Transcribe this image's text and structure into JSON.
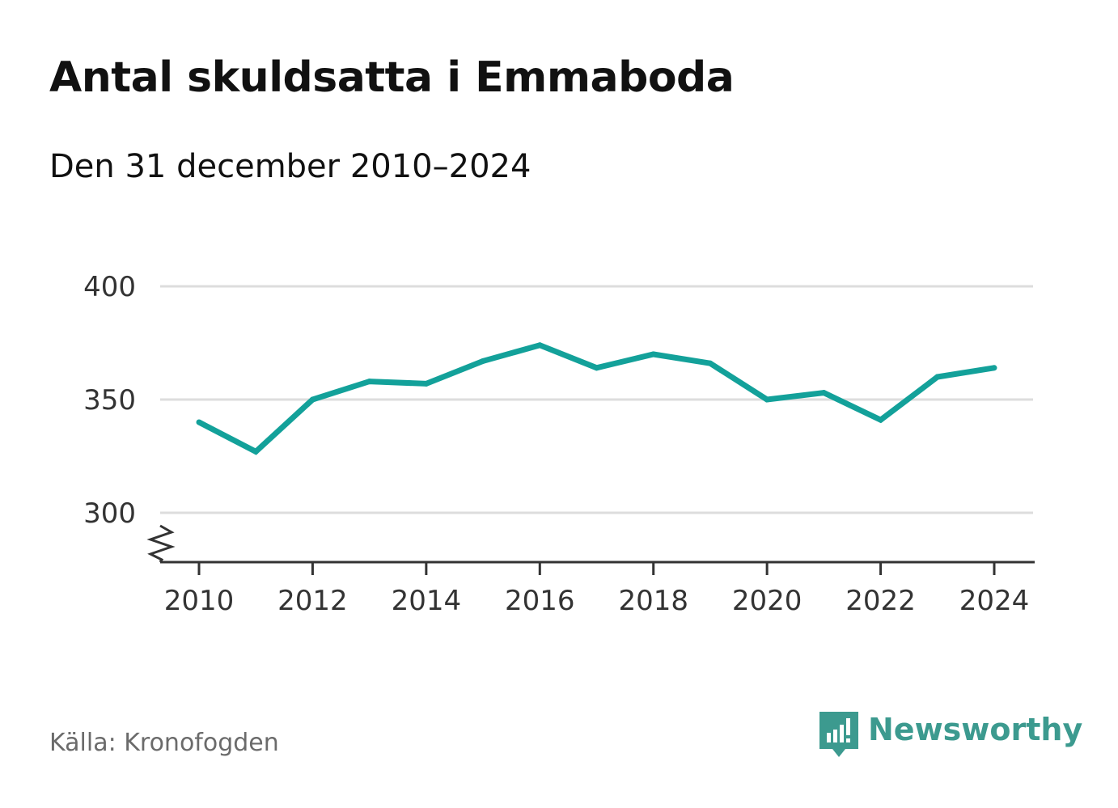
{
  "title": "Antal skuldsatta i Emmaboda",
  "subtitle": "Den 31 december 2010–2024",
  "source": "Källa: Kronofogden",
  "brand": {
    "name": "Newsworthy",
    "icon": "newsworthy-logo-icon",
    "color": "#3c9a8f"
  },
  "colors": {
    "line": "#13a19a",
    "grid": "#dddddd",
    "axis": "#333333"
  },
  "chart_data": {
    "type": "line",
    "x": [
      2010,
      2011,
      2012,
      2013,
      2014,
      2015,
      2016,
      2017,
      2018,
      2019,
      2020,
      2021,
      2022,
      2023,
      2024
    ],
    "series": [
      {
        "values": [
          340,
          327,
          350,
          358,
          357,
          367,
          374,
          364,
          370,
          366,
          350,
          353,
          341,
          360,
          364
        ]
      }
    ],
    "xticks": [
      "2010",
      "2012",
      "2014",
      "2016",
      "2018",
      "2020",
      "2022",
      "2024"
    ],
    "yticks": [
      "300",
      "350",
      "400"
    ],
    "ylim": [
      300,
      400
    ],
    "xlim": [
      2010,
      2024
    ],
    "y_axis_break": true,
    "grid": true,
    "xlabel": "",
    "ylabel": ""
  }
}
